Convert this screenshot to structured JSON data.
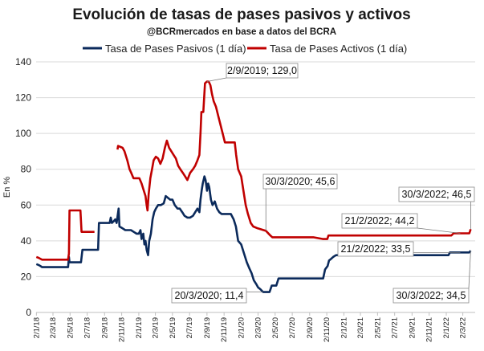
{
  "chart_data": {
    "type": "line",
    "title": "Evolución de tasas de pases pasivos y activos",
    "subtitle": "@BCRmercados en base a datos del BCRA",
    "ylabel": "En %",
    "xlabel": "",
    "ylim": [
      0,
      140
    ],
    "yticks": [
      "0",
      "20",
      "40",
      "60",
      "80",
      "100",
      "120",
      "140"
    ],
    "xlim": [
      "2018-01-01",
      "2022-04-15"
    ],
    "xtick_labels": [
      "2/1/18",
      "2/3/18",
      "2/5/18",
      "2/7/18",
      "2/9/18",
      "2/11/18",
      "2/1/19",
      "2/3/19",
      "2/5/19",
      "2/7/19",
      "2/9/19",
      "2/11/19",
      "2/1/20",
      "2/3/20",
      "2/5/20",
      "2/7/20",
      "2/9/20",
      "2/11/20",
      "2/1/21",
      "2/3/21",
      "2/5/21",
      "2/7/21",
      "2/9/21",
      "2/11/21",
      "2/1/22",
      "2/3/22"
    ],
    "xtick_dates": [
      "2018-01-02",
      "2018-03-02",
      "2018-05-02",
      "2018-07-02",
      "2018-09-02",
      "2018-11-02",
      "2019-01-02",
      "2019-03-02",
      "2019-05-02",
      "2019-07-02",
      "2019-09-02",
      "2019-11-02",
      "2020-01-02",
      "2020-03-02",
      "2020-05-02",
      "2020-07-02",
      "2020-09-02",
      "2020-11-02",
      "2021-01-02",
      "2021-03-02",
      "2021-05-02",
      "2021-07-02",
      "2021-09-02",
      "2021-11-02",
      "2022-01-02",
      "2022-03-02"
    ],
    "grid": true,
    "legend_position": "top",
    "series": [
      {
        "name": "Tasa de Pases Pasivos (1 día)",
        "color": "#0b2a5b",
        "points": [
          [
            "2018-01-02",
            27
          ],
          [
            "2018-01-10",
            26.5
          ],
          [
            "2018-01-16",
            26
          ],
          [
            "2018-01-22",
            25.3
          ],
          [
            "2018-04-25",
            25.3
          ],
          [
            "2018-04-28",
            31
          ],
          [
            "2018-04-30",
            28
          ],
          [
            "2018-05-10",
            28
          ],
          [
            "2018-06-10",
            28
          ],
          [
            "2018-06-15",
            35
          ],
          [
            "2018-08-10",
            35
          ],
          [
            "2018-08-13",
            50
          ],
          [
            "2018-09-20",
            50
          ],
          [
            "2018-09-24",
            53
          ],
          [
            "2018-09-28",
            50
          ],
          [
            "2018-10-05",
            51
          ],
          [
            "2018-10-10",
            52
          ],
          [
            "2018-10-15",
            50
          ],
          [
            "2018-10-22",
            58
          ],
          [
            "2018-10-25",
            48
          ],
          [
            "2018-11-05",
            47
          ],
          [
            "2018-11-15",
            46
          ],
          [
            "2018-11-25",
            46
          ],
          [
            "2018-12-05",
            46
          ],
          [
            "2018-12-15",
            45
          ],
          [
            "2018-12-25",
            44
          ],
          [
            "2019-01-02",
            44
          ],
          [
            "2019-01-08",
            46
          ],
          [
            "2019-01-12",
            41
          ],
          [
            "2019-01-18",
            44
          ],
          [
            "2019-01-22",
            38
          ],
          [
            "2019-01-26",
            40
          ],
          [
            "2019-01-30",
            35
          ],
          [
            "2019-02-04",
            32
          ],
          [
            "2019-02-08",
            40
          ],
          [
            "2019-02-14",
            44
          ],
          [
            "2019-02-20",
            52
          ],
          [
            "2019-02-26",
            56
          ],
          [
            "2019-03-04",
            58
          ],
          [
            "2019-03-12",
            60
          ],
          [
            "2019-03-22",
            60
          ],
          [
            "2019-04-01",
            61
          ],
          [
            "2019-04-08",
            65
          ],
          [
            "2019-04-16",
            64
          ],
          [
            "2019-04-24",
            63
          ],
          [
            "2019-05-02",
            63
          ],
          [
            "2019-05-10",
            60
          ],
          [
            "2019-05-20",
            58
          ],
          [
            "2019-05-28",
            58
          ],
          [
            "2019-06-06",
            56
          ],
          [
            "2019-06-14",
            54
          ],
          [
            "2019-06-24",
            53
          ],
          [
            "2019-07-04",
            53
          ],
          [
            "2019-07-14",
            54
          ],
          [
            "2019-07-22",
            56
          ],
          [
            "2019-07-30",
            58
          ],
          [
            "2019-08-06",
            56
          ],
          [
            "2019-08-10",
            63
          ],
          [
            "2019-08-14",
            68
          ],
          [
            "2019-08-18",
            72
          ],
          [
            "2019-08-24",
            76
          ],
          [
            "2019-08-28",
            74
          ],
          [
            "2019-09-02",
            68
          ],
          [
            "2019-09-06",
            72
          ],
          [
            "2019-09-10",
            70
          ],
          [
            "2019-09-16",
            63
          ],
          [
            "2019-09-22",
            60
          ],
          [
            "2019-09-30",
            62
          ],
          [
            "2019-10-08",
            58
          ],
          [
            "2019-10-16",
            56
          ],
          [
            "2019-10-24",
            55
          ],
          [
            "2019-11-02",
            55
          ],
          [
            "2019-11-18",
            55
          ],
          [
            "2019-11-26",
            55
          ],
          [
            "2019-12-06",
            52
          ],
          [
            "2019-12-14",
            48
          ],
          [
            "2019-12-22",
            40
          ],
          [
            "2020-01-02",
            38
          ],
          [
            "2020-01-12",
            33
          ],
          [
            "2020-01-22",
            28
          ],
          [
            "2020-01-30",
            25
          ],
          [
            "2020-02-08",
            22
          ],
          [
            "2020-02-16",
            18
          ],
          [
            "2020-02-24",
            16
          ],
          [
            "2020-03-02",
            14
          ],
          [
            "2020-03-10",
            13
          ],
          [
            "2020-03-20",
            11.4
          ],
          [
            "2020-04-12",
            11.4
          ],
          [
            "2020-04-20",
            15
          ],
          [
            "2020-05-06",
            15
          ],
          [
            "2020-05-14",
            19
          ],
          [
            "2020-06-15",
            19
          ],
          [
            "2020-08-15",
            19
          ],
          [
            "2020-10-20",
            19
          ],
          [
            "2020-10-27",
            24
          ],
          [
            "2020-11-05",
            26
          ],
          [
            "2020-11-10",
            29
          ],
          [
            "2020-11-18",
            30
          ],
          [
            "2020-11-25",
            31
          ],
          [
            "2020-12-05",
            32
          ],
          [
            "2021-03-01",
            32
          ],
          [
            "2021-07-01",
            32
          ],
          [
            "2021-11-01",
            32
          ],
          [
            "2022-01-10",
            32
          ],
          [
            "2022-01-15",
            33.5
          ],
          [
            "2022-02-21",
            33.5
          ],
          [
            "2022-03-25",
            33.5
          ],
          [
            "2022-03-30",
            34.5
          ]
        ]
      },
      {
        "name": "Tasa de Pases Activos (1 día)",
        "color": "#c00000",
        "points": [
          [
            "2018-01-02",
            31
          ],
          [
            "2018-01-10",
            30.5
          ],
          [
            "2018-01-16",
            30
          ],
          [
            "2018-01-22",
            29.5
          ],
          [
            "2018-04-25",
            29.5
          ],
          [
            "2018-04-28",
            33
          ],
          [
            "2018-04-30",
            57
          ],
          [
            "2018-06-08",
            57
          ],
          [
            "2018-06-12",
            45
          ],
          [
            "2018-07-28",
            45
          ],
          [
            "2018-10-18",
            91
          ],
          [
            "2018-10-20",
            93
          ],
          [
            "2018-11-05",
            92
          ],
          [
            "2018-11-12",
            90
          ],
          [
            "2018-11-22",
            85
          ],
          [
            "2018-11-30",
            80
          ],
          [
            "2018-12-06",
            78
          ],
          [
            "2018-12-14",
            75
          ],
          [
            "2018-12-26",
            75
          ],
          [
            "2019-01-04",
            75
          ],
          [
            "2019-01-12",
            72
          ],
          [
            "2019-01-20",
            68
          ],
          [
            "2019-01-26",
            65
          ],
          [
            "2019-01-30",
            60
          ],
          [
            "2019-02-02",
            57
          ],
          [
            "2019-02-06",
            66
          ],
          [
            "2019-02-12",
            75
          ],
          [
            "2019-02-18",
            80
          ],
          [
            "2019-02-24",
            85
          ],
          [
            "2019-03-04",
            87
          ],
          [
            "2019-03-12",
            86
          ],
          [
            "2019-03-20",
            83
          ],
          [
            "2019-03-28",
            86
          ],
          [
            "2019-04-05",
            92
          ],
          [
            "2019-04-12",
            96
          ],
          [
            "2019-04-20",
            92
          ],
          [
            "2019-04-28",
            90
          ],
          [
            "2019-05-06",
            88
          ],
          [
            "2019-05-14",
            86
          ],
          [
            "2019-05-22",
            82
          ],
          [
            "2019-05-30",
            80
          ],
          [
            "2019-06-08",
            78
          ],
          [
            "2019-06-16",
            76
          ],
          [
            "2019-06-24",
            74
          ],
          [
            "2019-07-04",
            78
          ],
          [
            "2019-07-14",
            80
          ],
          [
            "2019-07-22",
            82
          ],
          [
            "2019-07-30",
            85
          ],
          [
            "2019-08-06",
            88
          ],
          [
            "2019-08-10",
            100
          ],
          [
            "2019-08-13",
            112
          ],
          [
            "2019-08-20",
            112
          ],
          [
            "2019-08-26",
            128
          ],
          [
            "2019-09-02",
            129
          ],
          [
            "2019-09-08",
            129
          ],
          [
            "2019-09-14",
            127
          ],
          [
            "2019-09-20",
            122
          ],
          [
            "2019-09-26",
            118
          ],
          [
            "2019-10-04",
            115
          ],
          [
            "2019-10-12",
            110
          ],
          [
            "2019-10-20",
            105
          ],
          [
            "2019-10-28",
            100
          ],
          [
            "2019-11-05",
            95
          ],
          [
            "2019-11-25",
            95
          ],
          [
            "2019-12-10",
            95
          ],
          [
            "2019-12-15",
            88
          ],
          [
            "2019-12-22",
            80
          ],
          [
            "2020-01-02",
            76
          ],
          [
            "2020-01-10",
            68
          ],
          [
            "2020-01-18",
            60
          ],
          [
            "2020-01-26",
            55
          ],
          [
            "2020-02-05",
            50
          ],
          [
            "2020-02-14",
            48
          ],
          [
            "2020-03-01",
            47
          ],
          [
            "2020-03-30",
            45.6
          ],
          [
            "2020-04-15",
            43
          ],
          [
            "2020-04-22",
            42
          ],
          [
            "2020-07-01",
            42
          ],
          [
            "2020-09-15",
            42
          ],
          [
            "2020-10-20",
            41
          ],
          [
            "2020-11-04",
            41
          ],
          [
            "2020-11-08",
            43
          ],
          [
            "2021-03-01",
            43
          ],
          [
            "2021-07-01",
            43
          ],
          [
            "2021-12-15",
            43
          ],
          [
            "2022-01-20",
            43
          ],
          [
            "2022-01-28",
            44.2
          ],
          [
            "2022-02-21",
            44.2
          ],
          [
            "2022-03-25",
            44.2
          ],
          [
            "2022-03-30",
            46.5
          ]
        ]
      }
    ],
    "annotations": [
      {
        "text": "2/9/2019; 129,0",
        "date": "2019-09-02",
        "value": 129.0,
        "series": 1
      },
      {
        "text": "30/3/2020; 45,6",
        "date": "2020-03-30",
        "value": 45.6,
        "series": 1
      },
      {
        "text": "30/3/2022; 46,5",
        "date": "2022-03-30",
        "value": 46.5,
        "series": 1
      },
      {
        "text": "21/2/2022; 44,2",
        "date": "2022-02-21",
        "value": 44.2,
        "series": 1
      },
      {
        "text": "21/2/2022; 33,5",
        "date": "2022-02-21",
        "value": 33.5,
        "series": 0
      },
      {
        "text": "20/3/2020; 11,4",
        "date": "2020-03-20",
        "value": 11.4,
        "series": 0
      },
      {
        "text": "30/3/2022; 34,5",
        "date": "2022-03-30",
        "value": 34.5,
        "series": 0
      }
    ]
  }
}
